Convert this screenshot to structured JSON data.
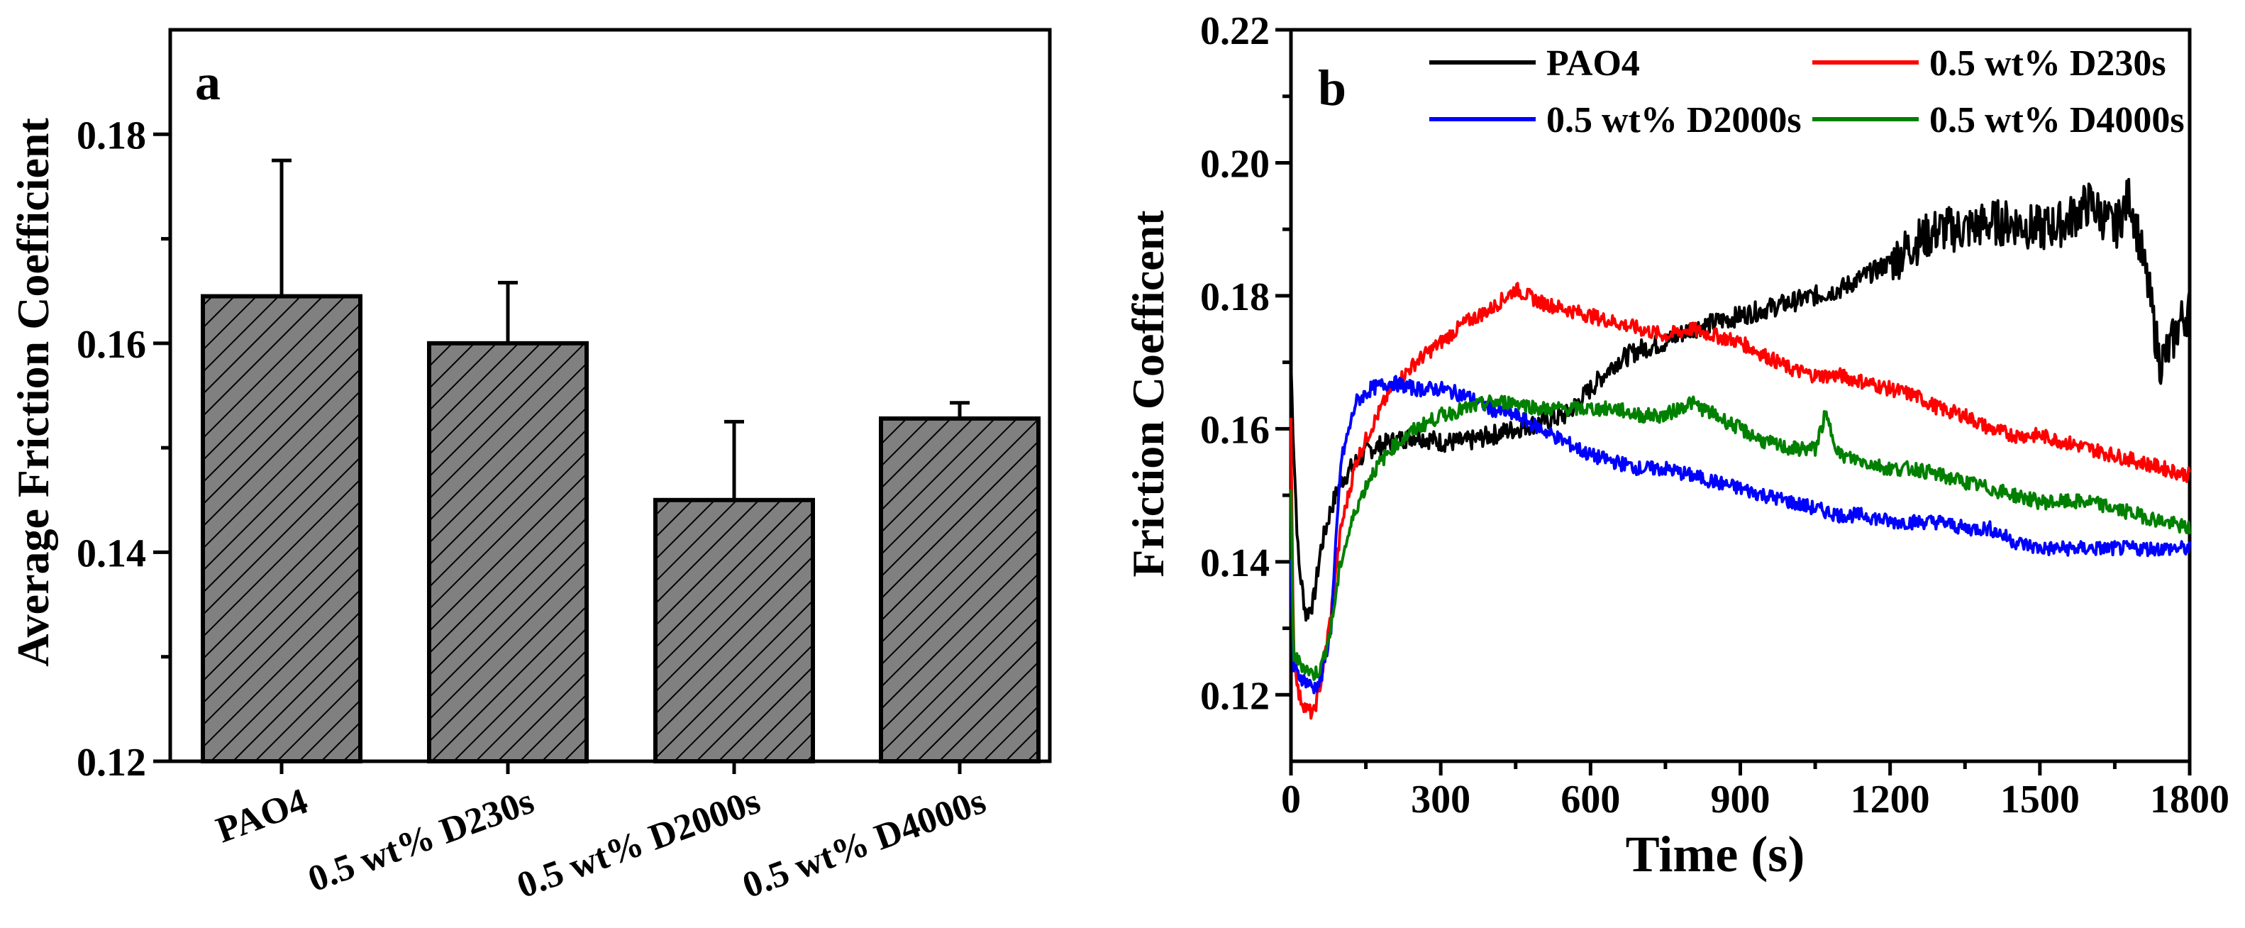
{
  "chart_data": [
    {
      "panel": "a",
      "type": "bar",
      "title": "",
      "xlabel": "",
      "ylabel": "Average Friction Coefficient",
      "ylim": [
        0.12,
        0.19
      ],
      "yticks": [
        "0.12",
        "0.14",
        "0.16",
        "0.18"
      ],
      "categories": [
        "PAO4",
        "0.5 wt% D230s",
        "0.5 wt% D2000s",
        "0.5 wt% D4000s"
      ],
      "values": [
        0.1645,
        0.16,
        0.145,
        0.1528
      ],
      "errors": [
        0.013,
        0.0058,
        0.0075,
        0.0015
      ],
      "bar_color": "#808080",
      "hatch": "diagonal"
    },
    {
      "panel": "b",
      "type": "line",
      "title": "",
      "xlabel": "Time (s)",
      "ylabel": "Friction Coefficent",
      "xlim": [
        0,
        1800
      ],
      "ylim": [
        0.11,
        0.22
      ],
      "xticks": [
        "0",
        "300",
        "600",
        "900",
        "1200",
        "1500",
        "1800"
      ],
      "yticks": [
        "0.12",
        "0.14",
        "0.16",
        "0.18",
        "0.20",
        "0.22"
      ],
      "legend_position": "top",
      "series": [
        {
          "name": "PAO4",
          "color": "#000000",
          "x": [
            0,
            5,
            15,
            30,
            45,
            60,
            80,
            100,
            130,
            160,
            200,
            250,
            300,
            350,
            400,
            450,
            500,
            550,
            600,
            650,
            700,
            750,
            800,
            850,
            900,
            950,
            1000,
            1050,
            1100,
            1150,
            1200,
            1250,
            1300,
            1350,
            1400,
            1450,
            1500,
            1550,
            1600,
            1650,
            1680,
            1700,
            1720,
            1740,
            1760,
            1780,
            1800
          ],
          "y": [
            0.17,
            0.158,
            0.14,
            0.132,
            0.134,
            0.142,
            0.148,
            0.152,
            0.155,
            0.157,
            0.158,
            0.159,
            0.158,
            0.158,
            0.159,
            0.16,
            0.161,
            0.162,
            0.166,
            0.17,
            0.172,
            0.173,
            0.175,
            0.176,
            0.177,
            0.178,
            0.179,
            0.18,
            0.181,
            0.183,
            0.185,
            0.188,
            0.19,
            0.19,
            0.191,
            0.191,
            0.19,
            0.191,
            0.194,
            0.19,
            0.195,
            0.188,
            0.18,
            0.17,
            0.172,
            0.176,
            0.178
          ]
        },
        {
          "name": "0.5 wt% D230s",
          "color": "#ff0000",
          "x": [
            0,
            5,
            15,
            30,
            45,
            60,
            80,
            100,
            130,
            160,
            200,
            250,
            300,
            350,
            400,
            450,
            500,
            550,
            600,
            650,
            700,
            750,
            800,
            850,
            900,
            950,
            1000,
            1050,
            1100,
            1150,
            1200,
            1250,
            1300,
            1350,
            1400,
            1450,
            1500,
            1550,
            1600,
            1650,
            1700,
            1750,
            1800
          ],
          "y": [
            0.161,
            0.128,
            0.12,
            0.118,
            0.117,
            0.122,
            0.132,
            0.145,
            0.155,
            0.16,
            0.166,
            0.17,
            0.173,
            0.176,
            0.178,
            0.181,
            0.179,
            0.178,
            0.177,
            0.176,
            0.175,
            0.174,
            0.175,
            0.174,
            0.173,
            0.171,
            0.169,
            0.168,
            0.168,
            0.167,
            0.166,
            0.165,
            0.163,
            0.162,
            0.16,
            0.159,
            0.159,
            0.158,
            0.157,
            0.156,
            0.155,
            0.154,
            0.153
          ]
        },
        {
          "name": "0.5 wt% D2000s",
          "color": "#0000ff",
          "x": [
            0,
            5,
            15,
            30,
            45,
            60,
            80,
            100,
            130,
            160,
            200,
            250,
            300,
            350,
            400,
            450,
            500,
            550,
            600,
            650,
            700,
            750,
            800,
            850,
            900,
            950,
            1000,
            1050,
            1100,
            1150,
            1200,
            1250,
            1300,
            1350,
            1400,
            1450,
            1500,
            1550,
            1600,
            1650,
            1700,
            1750,
            1800
          ],
          "y": [
            0.14,
            0.124,
            0.123,
            0.122,
            0.121,
            0.122,
            0.13,
            0.155,
            0.164,
            0.166,
            0.167,
            0.166,
            0.166,
            0.165,
            0.163,
            0.162,
            0.16,
            0.158,
            0.156,
            0.155,
            0.154,
            0.154,
            0.153,
            0.152,
            0.151,
            0.15,
            0.149,
            0.148,
            0.147,
            0.147,
            0.146,
            0.146,
            0.146,
            0.145,
            0.145,
            0.143,
            0.142,
            0.142,
            0.142,
            0.142,
            0.142,
            0.142,
            0.142
          ]
        },
        {
          "name": "0.5 wt% D4000s",
          "color": "#008000",
          "x": [
            0,
            5,
            15,
            30,
            45,
            60,
            80,
            100,
            130,
            160,
            200,
            250,
            300,
            350,
            400,
            450,
            500,
            550,
            600,
            650,
            700,
            750,
            800,
            850,
            900,
            950,
            1000,
            1050,
            1070,
            1100,
            1150,
            1200,
            1250,
            1300,
            1350,
            1400,
            1450,
            1500,
            1550,
            1600,
            1650,
            1700,
            1750,
            1800
          ],
          "y": [
            0.15,
            0.126,
            0.125,
            0.124,
            0.123,
            0.124,
            0.13,
            0.14,
            0.148,
            0.153,
            0.157,
            0.16,
            0.162,
            0.163,
            0.164,
            0.164,
            0.163,
            0.163,
            0.163,
            0.163,
            0.162,
            0.162,
            0.164,
            0.162,
            0.16,
            0.158,
            0.157,
            0.157,
            0.162,
            0.156,
            0.155,
            0.154,
            0.154,
            0.153,
            0.152,
            0.151,
            0.15,
            0.149,
            0.149,
            0.149,
            0.148,
            0.147,
            0.146,
            0.145
          ]
        }
      ]
    }
  ],
  "panel_labels": {
    "a": "a",
    "b": "b"
  }
}
